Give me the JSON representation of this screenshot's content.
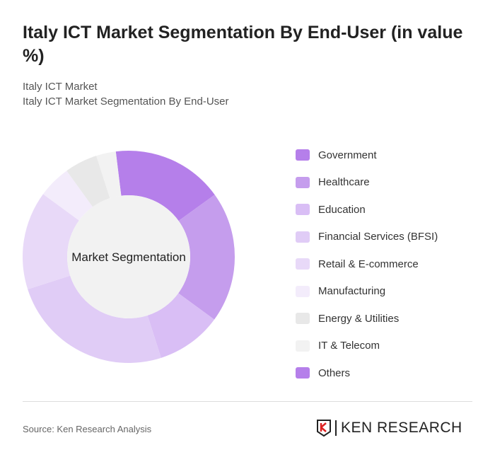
{
  "title": "Italy ICT Market Segmentation By End-User (in value %)",
  "subtitle1": "Italy ICT Market",
  "subtitle2": "Italy ICT Market Segmentation By End-User",
  "center_label": "Market Segmentation",
  "source": "Source: Ken Research Analysis",
  "logo_text": "KEN RESEARCH",
  "chart_data": {
    "type": "pie",
    "donut": true,
    "categories": [
      "Government",
      "Healthcare",
      "Education",
      "Financial Services (BFSI)",
      "Retail & E-commerce",
      "Manufacturing",
      "Energy & Utilities",
      "IT & Telecom",
      "Others"
    ],
    "values": [
      17,
      20,
      10,
      25,
      15,
      5,
      5,
      3,
      0
    ],
    "colors": [
      "#b57fea",
      "#c59ded",
      "#d9bef5",
      "#e0ccf6",
      "#e8d9f8",
      "#f3ecfb",
      "#e8e8e8",
      "#f2f2f2",
      "#b57fea"
    ],
    "legend_position": "right"
  }
}
